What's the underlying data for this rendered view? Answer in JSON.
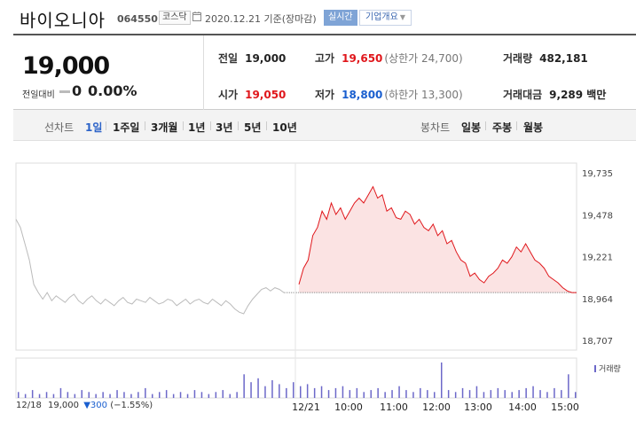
{
  "header": {
    "stock_name": "바이오니아",
    "stock_code": "064550",
    "market": "코스닥",
    "date_text": "2020.12.21  기준(장마감)",
    "realtime_label": "실시간",
    "company_label": "기업개요",
    "icons": [
      "calendar-icon",
      "chevron-down-icon"
    ]
  },
  "quote": {
    "price": "19,000",
    "change_label": "전일대비",
    "change_value": "0",
    "change_pct": "0.00%",
    "prev_close_label": "전일",
    "prev_close": "19,000",
    "high_label": "고가",
    "high": "19,650",
    "upper_limit": "(상한가 24,700)",
    "volume_label": "거래량",
    "volume": "482,181",
    "open_label": "시가",
    "open": "19,050",
    "low_label": "저가",
    "low": "18,800",
    "lower_limit": "(하한가 13,300)",
    "value_label": "거래대금",
    "value": "9,289 백만",
    "colors": {
      "up": "#e0171c",
      "down": "#1a5fcf"
    }
  },
  "tabs": {
    "line_label": "선차트",
    "periods": [
      "1일",
      "1주일",
      "3개월",
      "1년",
      "3년",
      "5년",
      "10년"
    ],
    "active_period": "1일",
    "candle_label": "봉차트",
    "candles": [
      "일봉",
      "주봉",
      "월봉"
    ]
  },
  "chart_data": [
    {
      "type": "line",
      "title": "",
      "ylabel": "",
      "ylim": [
        18707,
        19735
      ],
      "y_ticks": [
        "19,735",
        "19,478",
        "19,221",
        "18,964",
        "18,707"
      ],
      "x_ticks": [
        "12/21",
        "10:00",
        "11:00",
        "12:00",
        "13:00",
        "14:00",
        "15:00"
      ],
      "reference_price": 19000,
      "series": [
        {
          "name": "12/18",
          "color": "#bbbbbb",
          "x": [
            0,
            1,
            2,
            3,
            4,
            5,
            6,
            7,
            8,
            9,
            10,
            11,
            12,
            13,
            14,
            15,
            16,
            17,
            18,
            19,
            20,
            21,
            22,
            23,
            24,
            25,
            26,
            27,
            28,
            29,
            30,
            31,
            32,
            33,
            34,
            35,
            36,
            37,
            38,
            39,
            40,
            41,
            42,
            43,
            44,
            45,
            46,
            47,
            48,
            49,
            50,
            51,
            52,
            53,
            54,
            55,
            56,
            57,
            58,
            59,
            60
          ],
          "values": [
            19450,
            19400,
            19300,
            19200,
            19050,
            19000,
            18960,
            19000,
            18950,
            18980,
            18960,
            18940,
            18970,
            18990,
            18950,
            18930,
            18960,
            18980,
            18950,
            18930,
            18960,
            18940,
            18920,
            18950,
            18970,
            18940,
            18930,
            18960,
            18950,
            18940,
            18970,
            18950,
            18930,
            18940,
            18960,
            18950,
            18920,
            18940,
            18960,
            18930,
            18950,
            18960,
            18940,
            18930,
            18960,
            18940,
            18920,
            18950,
            18930,
            18900,
            18880,
            18870,
            18920,
            18960,
            18990,
            19020,
            19030,
            19010,
            19030,
            19020,
            19000
          ]
        },
        {
          "name": "12/21",
          "color": "#e0171c",
          "x": [
            0,
            1,
            2,
            3,
            4,
            5,
            6,
            7,
            8,
            9,
            10,
            11,
            12,
            13,
            14,
            15,
            16,
            17,
            18,
            19,
            20,
            21,
            22,
            23,
            24,
            25,
            26,
            27,
            28,
            29,
            30,
            31,
            32,
            33,
            34,
            35,
            36,
            37,
            38,
            39,
            40,
            41,
            42,
            43,
            44,
            45,
            46,
            47,
            48,
            49,
            50,
            51,
            52,
            53,
            54,
            55,
            56,
            57,
            58,
            59,
            60
          ],
          "values": [
            19050,
            19150,
            19200,
            19350,
            19400,
            19500,
            19450,
            19550,
            19480,
            19520,
            19450,
            19500,
            19550,
            19580,
            19550,
            19600,
            19650,
            19580,
            19600,
            19500,
            19520,
            19460,
            19450,
            19500,
            19480,
            19420,
            19450,
            19400,
            19380,
            19420,
            19350,
            19380,
            19300,
            19320,
            19250,
            19200,
            19180,
            19100,
            19120,
            19080,
            19060,
            19100,
            19120,
            19150,
            19200,
            19180,
            19220,
            19280,
            19250,
            19300,
            19250,
            19200,
            19180,
            19150,
            19100,
            19080,
            19060,
            19030,
            19010,
            19000,
            19000
          ]
        }
      ]
    },
    {
      "type": "bar",
      "title": "",
      "legend": "거래량",
      "series": [
        {
          "name": "거래량",
          "color": "#6c68c9",
          "values": [
            3,
            2,
            4,
            2,
            3,
            2,
            5,
            3,
            2,
            4,
            3,
            2,
            3,
            2,
            4,
            3,
            2,
            3,
            5,
            2,
            3,
            4,
            2,
            3,
            2,
            4,
            3,
            2,
            3,
            4,
            2,
            3,
            12,
            8,
            10,
            6,
            9,
            7,
            5,
            8,
            6,
            7,
            5,
            6,
            4,
            5,
            6,
            4,
            5,
            3,
            4,
            5,
            3,
            4,
            6,
            4,
            3,
            5,
            4,
            3,
            18,
            4,
            3,
            5,
            4,
            6,
            3,
            4,
            5,
            4,
            3,
            4,
            5,
            6,
            4,
            3,
            5,
            4,
            12,
            3
          ]
        }
      ]
    }
  ],
  "bottom_info": {
    "date": "12/18",
    "price": "19,000",
    "arrow": "▼",
    "change": "300",
    "pct": "(−1.55%)"
  }
}
